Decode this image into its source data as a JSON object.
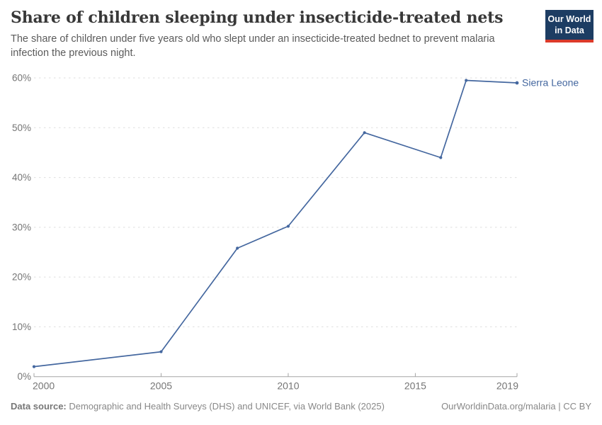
{
  "header": {
    "title": "Share of children sleeping under insecticide-treated nets",
    "subtitle": "The share of children under five years old who slept under an insecticide-treated bednet to prevent malaria infection the previous night."
  },
  "logo": {
    "line1": "Our World",
    "line2": "in Data",
    "bg_color": "#1d3d63",
    "bar_color": "#dc3a2a"
  },
  "chart_data": {
    "type": "line",
    "title": "Share of children sleeping under insecticide-treated nets",
    "xlabel": "",
    "ylabel": "",
    "xlim": [
      2000,
      2019
    ],
    "ylim": [
      0,
      60
    ],
    "grid": "horizontal-dashed",
    "legend_position": "end-of-line",
    "xticks": [
      {
        "value": 2000,
        "label": "2000"
      },
      {
        "value": 2005,
        "label": "2005"
      },
      {
        "value": 2010,
        "label": "2010"
      },
      {
        "value": 2015,
        "label": "2015"
      },
      {
        "value": 2019,
        "label": "2019"
      }
    ],
    "yticks": [
      {
        "value": 0,
        "label": "0%"
      },
      {
        "value": 10,
        "label": "10%"
      },
      {
        "value": 20,
        "label": "20%"
      },
      {
        "value": 30,
        "label": "30%"
      },
      {
        "value": 40,
        "label": "40%"
      },
      {
        "value": 50,
        "label": "50%"
      },
      {
        "value": 60,
        "label": "60%"
      }
    ],
    "series": [
      {
        "name": "Sierra Leone",
        "color": "#44679f",
        "x": [
          2000,
          2005,
          2008,
          2010,
          2013,
          2016,
          2017,
          2019
        ],
        "values": [
          2,
          5,
          25.8,
          30.2,
          49,
          44,
          59.5,
          59
        ]
      }
    ]
  },
  "colors": {
    "grid": "#dedede",
    "axis": "#a5a5a5",
    "tick_label": "#757575",
    "title": "#383838",
    "subtitle": "#5b5b5b",
    "footer": "#888888"
  },
  "footer": {
    "source_label": "Data source:",
    "source_text": " Demographic and Health Surveys (DHS) and UNICEF, via World Bank (2025)",
    "attribution": "OurWorldinData.org/malaria | CC BY"
  }
}
